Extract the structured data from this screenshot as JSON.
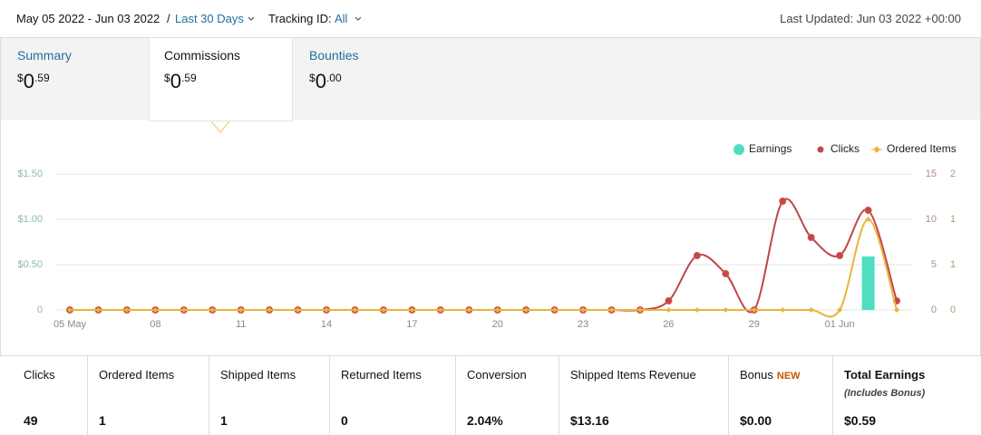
{
  "header": {
    "date_range": "May 05 2022 - Jun 03 2022",
    "separator": "/",
    "range_link": "Last 30 Days",
    "tracking_label": "Tracking ID:",
    "tracking_value": "All",
    "last_updated": "Last Updated: Jun 03 2022 +00:00"
  },
  "tabs": [
    {
      "name": "Summary",
      "currency": "$",
      "whole": "0",
      "cents": ".59"
    },
    {
      "name": "Commissions",
      "currency": "$",
      "whole": "0",
      "cents": ".59"
    },
    {
      "name": "Bounties",
      "currency": "$",
      "whole": "0",
      "cents": ".00"
    }
  ],
  "chart_data": {
    "type": "combo",
    "categories": [
      "05 May",
      null,
      null,
      "08",
      null,
      null,
      "11",
      null,
      null,
      "14",
      null,
      null,
      "17",
      null,
      null,
      "20",
      null,
      null,
      "23",
      null,
      null,
      "26",
      null,
      null,
      "29",
      null,
      null,
      "01 Jun",
      null,
      null
    ],
    "series": [
      {
        "name": "Earnings",
        "type": "bar",
        "axis": "y",
        "color": "#4fdfc0",
        "values": [
          0,
          0,
          0,
          0,
          0,
          0,
          0,
          0,
          0,
          0,
          0,
          0,
          0,
          0,
          0,
          0,
          0,
          0,
          0,
          0,
          0,
          0,
          0,
          0,
          0,
          0,
          0,
          0,
          0.59,
          0
        ]
      },
      {
        "name": "Clicks",
        "type": "line",
        "axis": "y2",
        "color": "#c0474a",
        "values": [
          0,
          0,
          0,
          0,
          0,
          0,
          0,
          0,
          0,
          0,
          0,
          0,
          0,
          0,
          0,
          0,
          0,
          0,
          0,
          0,
          0,
          1,
          6,
          4,
          0,
          12,
          8,
          6,
          11,
          1
        ]
      },
      {
        "name": "Ordered Items",
        "type": "line",
        "axis": "y3",
        "color": "#e8b53a",
        "values": [
          0,
          0,
          0,
          0,
          0,
          0,
          0,
          0,
          0,
          0,
          0,
          0,
          0,
          0,
          0,
          0,
          0,
          0,
          0,
          0,
          0,
          0,
          0,
          0,
          0,
          0,
          0,
          0,
          1,
          0
        ]
      }
    ],
    "ylim": [
      0,
      1.5
    ],
    "yticks": [
      0,
      {
        "value": 0.5,
        "label": "$0.50"
      },
      {
        "value": 1,
        "label": "$1.00"
      },
      {
        "value": 1.5,
        "label": "$1.50"
      }
    ],
    "y2lim": [
      0,
      15
    ],
    "y2ticks": [
      0,
      5,
      10,
      15
    ],
    "y3lim": [
      0,
      1.5
    ],
    "y3ticks": [
      0,
      {
        "value": 0.5,
        "label": "1"
      },
      1,
      {
        "value": 1.5,
        "label": "2"
      }
    ],
    "grid": true,
    "legend": "top-right"
  },
  "stats": {
    "columns": [
      {
        "label": "Clicks",
        "value": "49"
      },
      {
        "label": "Ordered Items",
        "value": "1"
      },
      {
        "label": "Shipped Items",
        "value": "1"
      },
      {
        "label": "Returned Items",
        "value": "0"
      },
      {
        "label": "Conversion",
        "value": "2.04%"
      },
      {
        "label": "Shipped Items Revenue",
        "value": "$13.16"
      },
      {
        "label": "Bonus",
        "badge": "NEW",
        "value": "$0.00"
      },
      {
        "label": "Total Earnings",
        "note": "(Includes Bonus)",
        "value": "$0.59"
      }
    ]
  }
}
